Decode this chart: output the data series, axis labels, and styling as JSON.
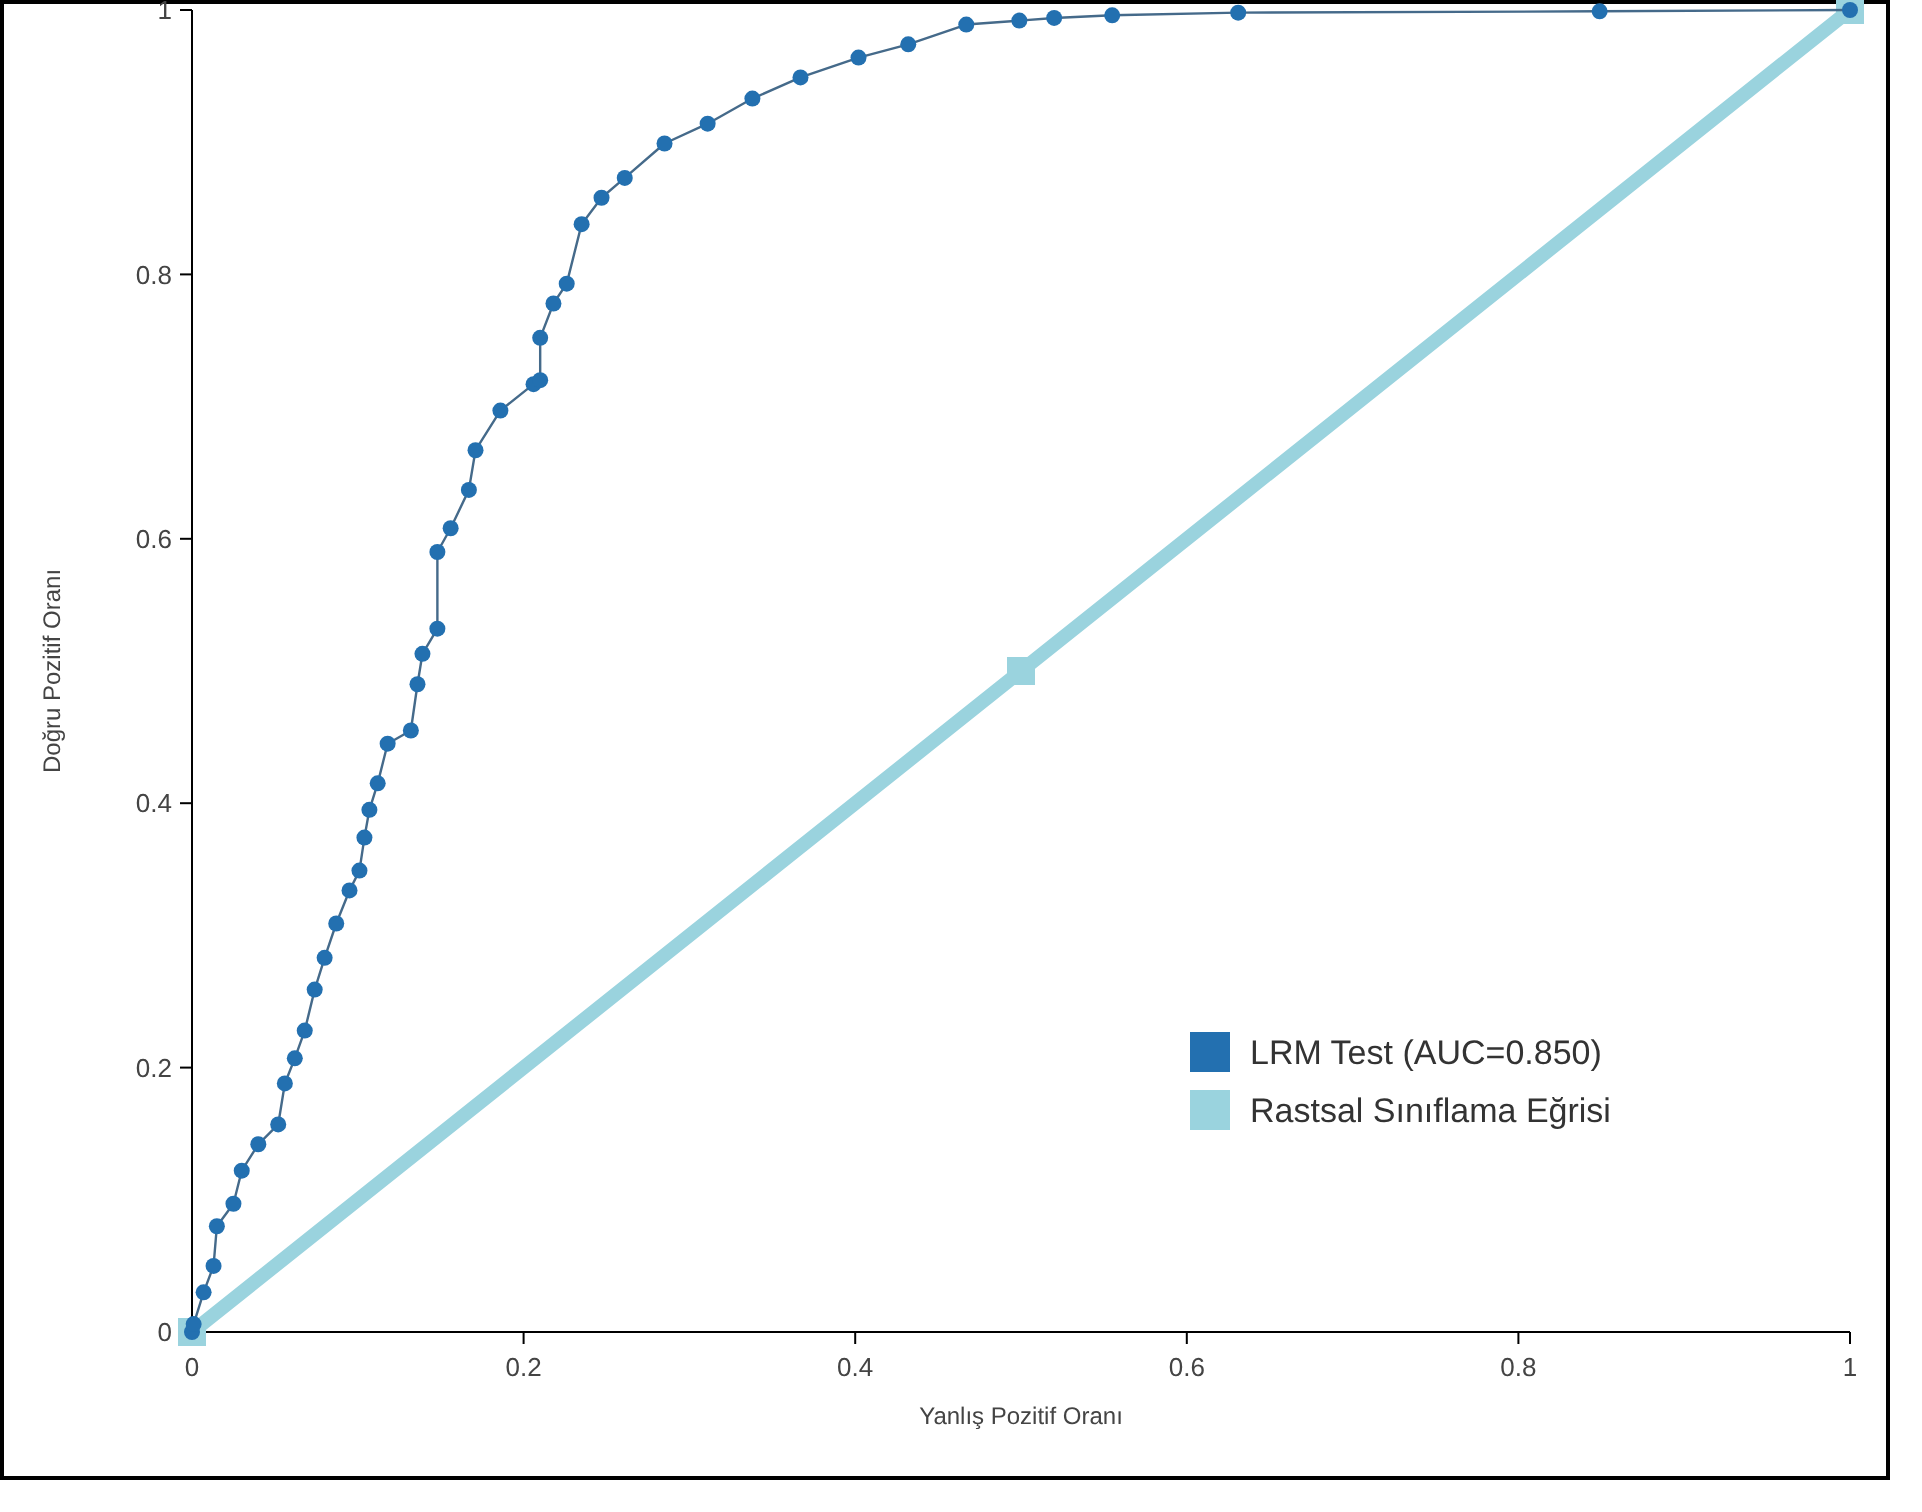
{
  "chart_data": {
    "type": "line",
    "xlabel": "Yanlış Pozitif Oranı",
    "ylabel": "Doğru Pozitif Oranı",
    "xlim": [
      0,
      1
    ],
    "ylim": [
      0,
      1
    ],
    "xticks": [
      0,
      0.2,
      0.4,
      0.6,
      0.8,
      1
    ],
    "yticks": [
      0,
      0.2,
      0.4,
      0.6,
      0.8,
      1
    ],
    "grid": false,
    "legend": "bottom right",
    "marker": "circle",
    "series": [
      {
        "name": "LRM Test (AUC=0.850)",
        "color": "#2370b0",
        "x": [
          0,
          0.001,
          0.007,
          0.013,
          0.015,
          0.025,
          0.03,
          0.04,
          0.052,
          0.056,
          0.062,
          0.068,
          0.074,
          0.08,
          0.087,
          0.095,
          0.101,
          0.104,
          0.107,
          0.112,
          0.118,
          0.132,
          0.136,
          0.139,
          0.148,
          0.148,
          0.156,
          0.167,
          0.171,
          0.186,
          0.206,
          0.21,
          0.21,
          0.218,
          0.226,
          0.235,
          0.247,
          0.261,
          0.285,
          0.311,
          0.338,
          0.367,
          0.402,
          0.432,
          0.467,
          0.499,
          0.52,
          0.555,
          0.631,
          0.849,
          1
        ],
        "values": [
          0,
          0.006,
          0.03,
          0.05,
          0.08,
          0.097,
          0.122,
          0.142,
          0.157,
          0.188,
          0.207,
          0.228,
          0.259,
          0.283,
          0.309,
          0.334,
          0.349,
          0.374,
          0.395,
          0.415,
          0.445,
          0.455,
          0.49,
          0.513,
          0.532,
          0.59,
          0.608,
          0.637,
          0.667,
          0.697,
          0.717,
          0.72,
          0.752,
          0.778,
          0.793,
          0.838,
          0.858,
          0.873,
          0.899,
          0.914,
          0.933,
          0.949,
          0.964,
          0.974,
          0.989,
          0.992,
          0.994,
          0.996,
          0.998,
          0.999,
          1
        ]
      },
      {
        "name": "Rastsal Sınıflama Eğrisi",
        "color": "#9ad3de",
        "marker": "square",
        "x": [
          0,
          0.5,
          1
        ],
        "values": [
          0,
          0.5,
          1
        ]
      }
    ]
  }
}
